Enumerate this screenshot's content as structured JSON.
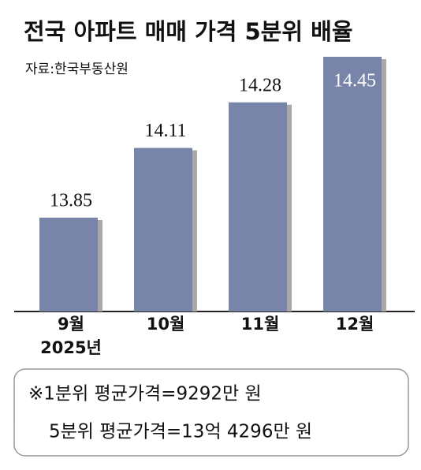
{
  "chart_data": {
    "type": "bar",
    "title": "전국 아파트 매매 가격 5분위 배율",
    "subtitle": "자료:한국부동산원",
    "categories": [
      "9월",
      "10월",
      "11월",
      "12월"
    ],
    "x_annotation": "2025년",
    "values": [
      13.85,
      14.11,
      14.28,
      14.45
    ],
    "color": "#7885a8",
    "ylim": [
      13.5,
      14.5
    ],
    "notes": [
      "※1분위 평균가격=9292만 원",
      "5분위 평균가격=13억 4296만 원"
    ]
  }
}
